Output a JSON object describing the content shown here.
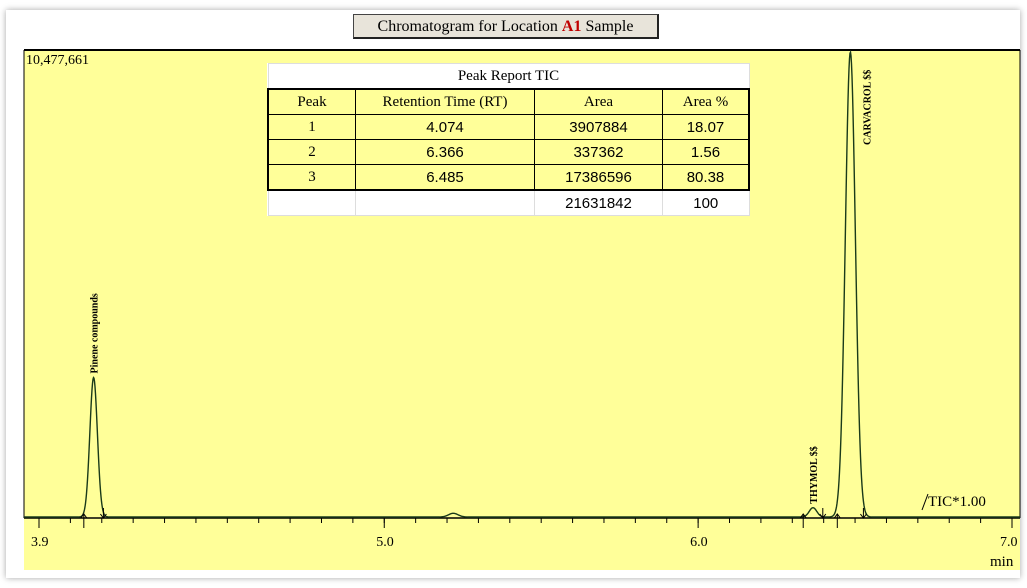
{
  "title": {
    "prefix": "Chromatogram for Location",
    "location": "A1",
    "suffix": "Sample"
  },
  "chart_data": {
    "type": "line",
    "xlabel": "min",
    "xlim": [
      3.85,
      7.0
    ],
    "ylim": [
      0,
      10477661
    ],
    "y_max_label": "10,477,661",
    "trace_label": "TIC*1.00",
    "x_ticks": [
      "3.9",
      "5.0",
      "6.0",
      "7.0"
    ],
    "x_tick_values": [
      3.9,
      5.0,
      6.0,
      7.0
    ],
    "peaks": [
      {
        "label": "Pinene compounds",
        "rt": 4.074,
        "height_frac": 0.3
      },
      {
        "label": "THYMOL $$",
        "rt": 6.366,
        "height_frac": 0.02
      },
      {
        "label": "CARVACROL $$",
        "rt": 6.485,
        "height_frac": 1.0
      }
    ],
    "colors": {
      "background": "#ffff99",
      "trace": "#1a3a1a"
    }
  },
  "peak_report": {
    "caption": "Peak Report TIC",
    "headers": [
      "Peak",
      "Retention Time (RT)",
      "Area",
      "Area %"
    ],
    "rows": [
      [
        "1",
        "4.074",
        "3907884",
        "18.07"
      ],
      [
        "2",
        "6.366",
        "337362",
        "1.56"
      ],
      [
        "3",
        "6.485",
        "17386596",
        "80.38"
      ]
    ],
    "total": [
      "",
      "",
      "21631842",
      "100"
    ]
  }
}
